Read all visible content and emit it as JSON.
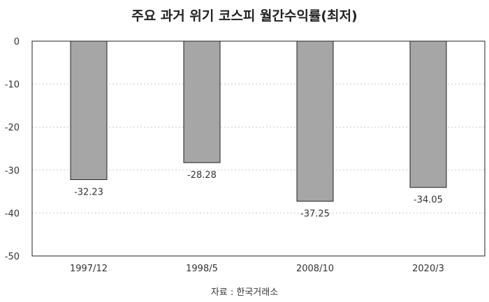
{
  "chart_data": {
    "type": "bar",
    "title": "주요 과거 위기 코스피 월간수익률(최저)",
    "categories": [
      "1997/12",
      "1998/5",
      "2008/10",
      "2020/3"
    ],
    "values": [
      -32.23,
      -28.28,
      -37.25,
      -34.05
    ],
    "value_labels": [
      "-32.23",
      "-28.28",
      "-37.25",
      "-34.05"
    ],
    "ylim": [
      -50,
      0
    ],
    "yticks": [
      0,
      -10,
      -20,
      -30,
      -40,
      -50
    ],
    "grid": true,
    "bar_color": "#a6a6a6",
    "source": "자료 : 한국거래소"
  }
}
